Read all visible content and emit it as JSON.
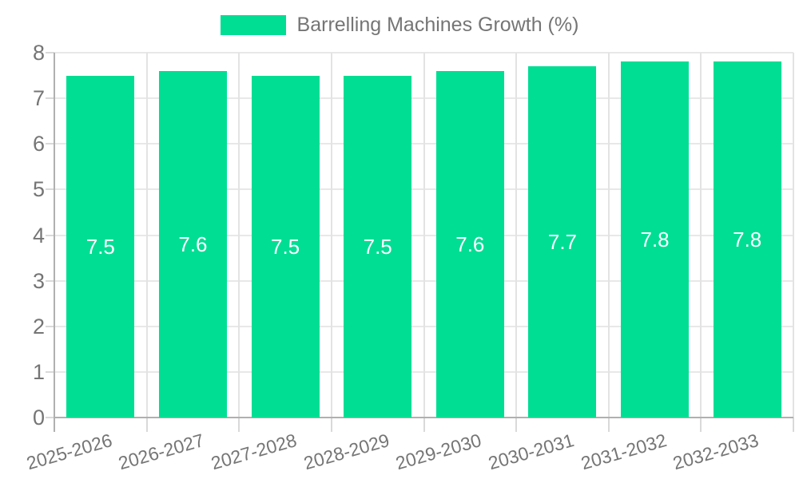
{
  "legend": {
    "label": "Barrelling Machines Growth (%)"
  },
  "colors": {
    "bar": "#00DE94",
    "axis_text": "#757575",
    "value_label_text": "#ffffff",
    "gridline": "#e8e8e8",
    "axis_line": "#b0b0b0",
    "background": "#ffffff"
  },
  "chart_data": {
    "type": "bar",
    "title": "Barrelling Machines Growth (%)",
    "series_name": "Barrelling Machines Growth (%)",
    "categories": [
      "2025-2026",
      "2026-2027",
      "2027-2028",
      "2028-2029",
      "2029-2030",
      "2030-2031",
      "2031-2032",
      "2032-2033"
    ],
    "values": [
      7.5,
      7.6,
      7.5,
      7.5,
      7.6,
      7.7,
      7.8,
      7.8
    ],
    "value_labels": [
      "7.5",
      "7.6",
      "7.5",
      "7.5",
      "7.6",
      "7.7",
      "7.8",
      "7.8"
    ],
    "xlabel": "",
    "ylabel": "",
    "ylim": [
      0,
      8
    ],
    "yticks": [
      0,
      1,
      2,
      3,
      4,
      5,
      6,
      7,
      8
    ],
    "grid": true,
    "legend_position": "top",
    "bar_color": "#00DE94",
    "value_label_position": "center-of-bar",
    "xlabel_rotation_deg": -16
  }
}
